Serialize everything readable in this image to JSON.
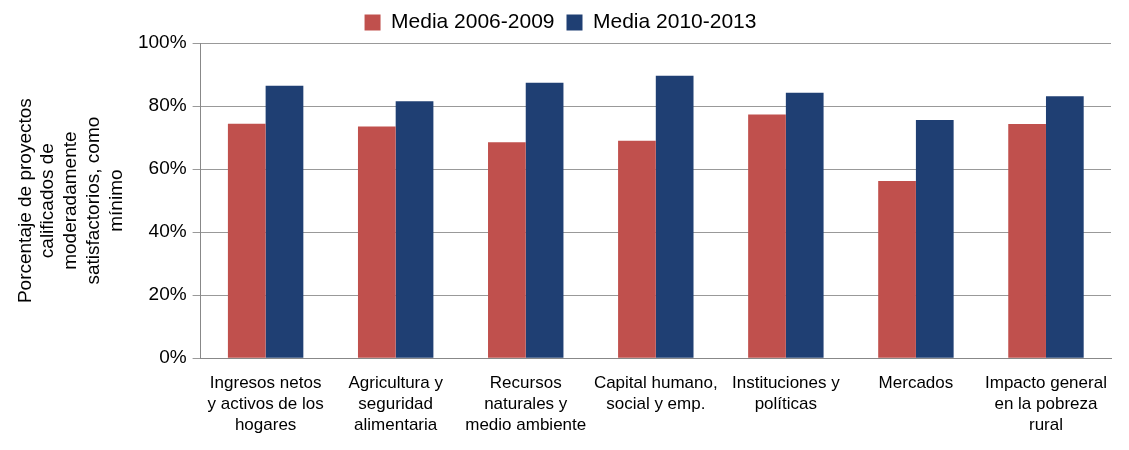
{
  "chart_data": {
    "type": "bar",
    "ylabel": "Porcentaje de proyectos calificados de moderadamente satisfactorios, como mínimo",
    "categories": [
      "Ingresos netos y activos de los hogares",
      "Agricultura y seguridad alimentaria",
      "Recursos naturales y medio ambiente",
      "Capital humano, social y emp.",
      "Instituciones y políticas",
      "Mercados",
      "Impacto general en la pobreza rural"
    ],
    "series": [
      {
        "name": "Media 2006-2009",
        "color": "#c0504d",
        "values": [
          74.4,
          73.5,
          68.5,
          69,
          77.3,
          56.2,
          74.3
        ]
      },
      {
        "name": "Media 2010-2013",
        "color": "#1f3f73",
        "values": [
          86.4,
          81.5,
          87.4,
          89.6,
          84.2,
          75.6,
          83.1
        ]
      }
    ],
    "ylim": [
      0,
      100
    ],
    "yticks": [
      {
        "value": 0,
        "label": "0%"
      },
      {
        "value": 20,
        "label": "20%"
      },
      {
        "value": 40,
        "label": "40%"
      },
      {
        "value": 60,
        "label": "60%"
      },
      {
        "value": 80,
        "label": "80%"
      },
      {
        "value": 100,
        "label": "100%"
      }
    ],
    "grid": "y",
    "legend": "top"
  }
}
